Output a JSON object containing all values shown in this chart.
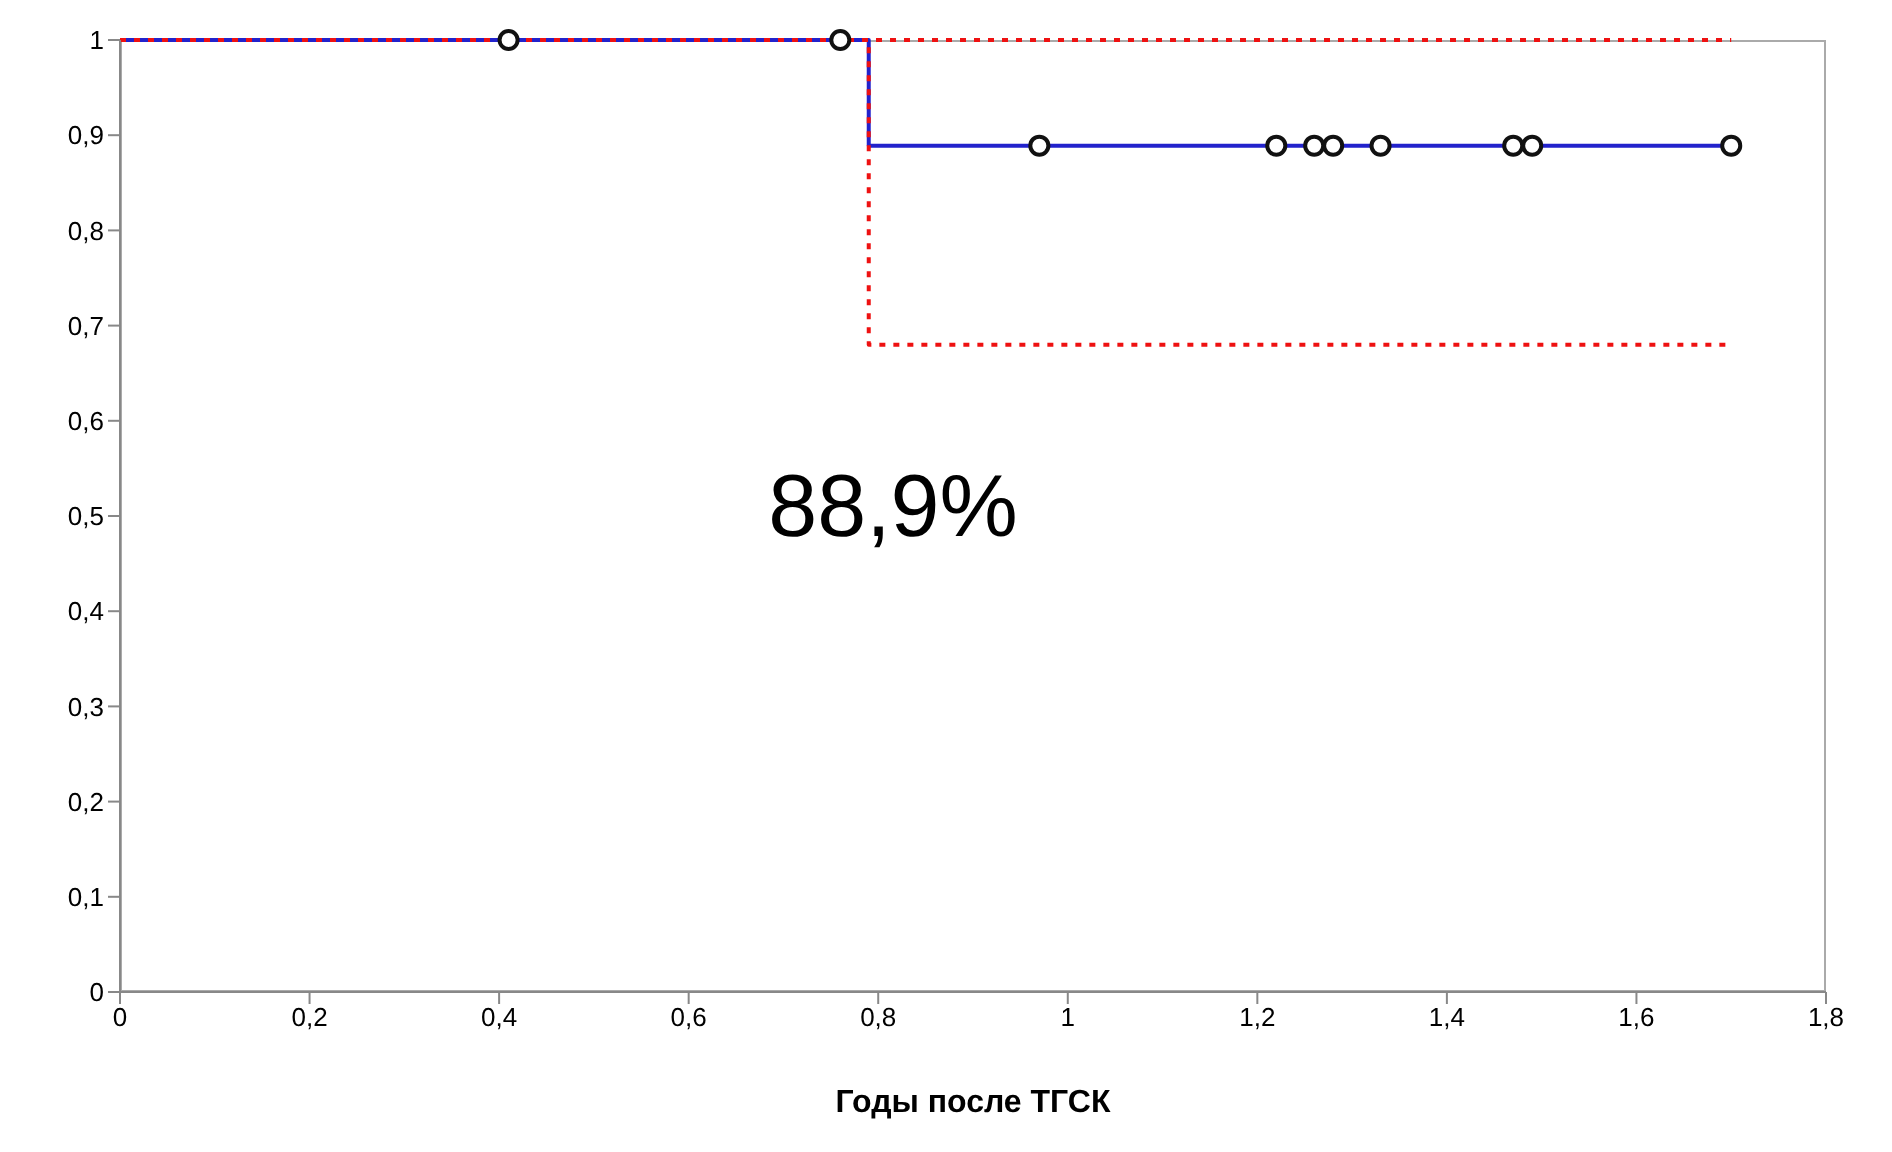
{
  "chart_data": {
    "type": "step",
    "xlabel": "Годы после ТГСК",
    "annotations": [
      "88,9%"
    ],
    "xlim": [
      0,
      1.8
    ],
    "ylim": [
      0,
      1
    ],
    "xticks": [
      0,
      {
        "value": 0.2,
        "label": "0,2"
      },
      {
        "value": 0.4,
        "label": "0,4"
      },
      {
        "value": 0.6,
        "label": "0,6"
      },
      {
        "value": 0.8,
        "label": "0,8"
      },
      1,
      {
        "value": 1.2,
        "label": "1,2"
      },
      {
        "value": 1.4,
        "label": "1,4"
      },
      {
        "value": 1.6,
        "label": "1,6"
      },
      {
        "value": 1.8,
        "label": "1,8"
      }
    ],
    "yticks": [
      0,
      {
        "value": 0.1,
        "label": "0,1"
      },
      {
        "value": 0.2,
        "label": "0,2"
      },
      {
        "value": 0.3,
        "label": "0,3"
      },
      {
        "value": 0.4,
        "label": "0,4"
      },
      {
        "value": 0.5,
        "label": "0,5"
      },
      {
        "value": 0.6,
        "label": "0,6"
      },
      {
        "value": 0.7,
        "label": "0,7"
      },
      {
        "value": 0.8,
        "label": "0,8"
      },
      {
        "value": 0.9,
        "label": "0,9"
      },
      1
    ],
    "grid": false,
    "legend": false,
    "series": [
      {
        "color": "#2222cc",
        "line_style": "solid",
        "marker": "none",
        "x": [
          0,
          0.79,
          1.7
        ],
        "values": [
          1,
          0.889,
          0.889
        ]
      },
      {
        "color": "#ee1111",
        "line_style": "dotted",
        "marker": "none",
        "x": [
          0,
          0.79,
          1.7
        ],
        "values": [
          1,
          0.68,
          0.68
        ]
      },
      {
        "color": "#ee1111",
        "line_style": "dotted",
        "marker": "none",
        "x": [
          0,
          0.79,
          1.7
        ],
        "values": [
          1,
          1,
          1
        ]
      },
      {
        "type": "scatter",
        "color": "#111111",
        "marker": "circle",
        "x": [
          0.41,
          0.76,
          0.97,
          1.22,
          1.26,
          1.28,
          1.33,
          1.47,
          1.49,
          1.7
        ],
        "values": [
          1,
          1,
          0.889,
          0.889,
          0.889,
          0.889,
          0.889,
          0.889,
          0.889,
          0.889
        ]
      }
    ]
  }
}
